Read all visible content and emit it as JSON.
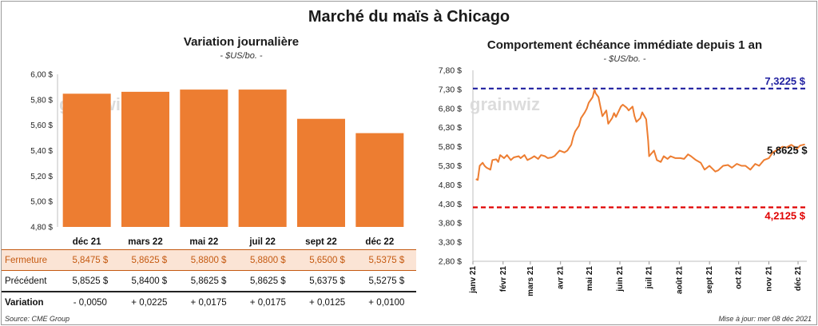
{
  "title": "Marché du maïs à Chicago",
  "left_chart": {
    "title": "Variation  journalière",
    "unit": "- $US/bo. -"
  },
  "right_chart": {
    "title": "Comportement  échéance immédiate depuis 1 an",
    "unit": "- $US/bo. -"
  },
  "watermark": "grainwiz",
  "table": {
    "rows": [
      {
        "label": "Fermeture",
        "values": [
          "5,8475  $",
          "5,8625  $",
          "5,8800  $",
          "5,8800  $",
          "5,6500  $",
          "5,5375  $"
        ]
      },
      {
        "label": "Précédent",
        "values": [
          "5,8525  $",
          "5,8400  $",
          "5,8625  $",
          "5,8625  $",
          "5,6375  $",
          "5,5275  $"
        ]
      },
      {
        "label": "Variation",
        "values": [
          "- 0,0050",
          "+ 0,0225",
          "+ 0,0175",
          "+ 0,0175",
          "+ 0,0125",
          "+ 0,0100"
        ]
      }
    ]
  },
  "footer": {
    "source": "Source: CME Group",
    "updated": "Mise à jour: mer 08 déc 2021"
  },
  "colors": {
    "bar": "#ed7d31",
    "line": "#ed7d31",
    "high": "#1f1fa0",
    "low": "#e00000"
  },
  "chart_data": [
    {
      "type": "bar",
      "categories": [
        "déc 21",
        "mars 22",
        "mai 22",
        "juil 22",
        "sept 22",
        "déc 22"
      ],
      "values": [
        5.8475,
        5.8625,
        5.88,
        5.88,
        5.65,
        5.5375
      ],
      "yticks": [
        "6,00 $",
        "5,80 $",
        "5,60 $",
        "5,40 $",
        "5,20 $",
        "5,00 $",
        "4,80 $"
      ],
      "ylim": [
        4.8,
        6.0
      ]
    },
    {
      "type": "line",
      "ylim": [
        2.8,
        7.8
      ],
      "yticks": [
        "7,80 $",
        "7,30 $",
        "6,80 $",
        "6,30 $",
        "5,80 $",
        "5,30 $",
        "4,80 $",
        "4,30 $",
        "3,80 $",
        "3,30 $",
        "2,80 $"
      ],
      "xticks": [
        "janv 21",
        "févr 21",
        "mars 21",
        "avr 21",
        "mai 21",
        "juin 21",
        "juil 21",
        "août 21",
        "sept 21",
        "oct 21",
        "nov 21",
        "déc 21"
      ],
      "x": [
        "2021-01-04",
        "2021-01-06",
        "2021-01-08",
        "2021-01-11",
        "2021-01-13",
        "2021-01-15",
        "2021-01-19",
        "2021-01-21",
        "2021-01-25",
        "2021-01-27",
        "2021-01-29",
        "2021-02-02",
        "2021-02-05",
        "2021-02-09",
        "2021-02-12",
        "2021-02-17",
        "2021-02-19",
        "2021-02-23",
        "2021-02-26",
        "2021-03-02",
        "2021-03-05",
        "2021-03-09",
        "2021-03-12",
        "2021-03-16",
        "2021-03-19",
        "2021-03-23",
        "2021-03-26",
        "2021-03-31",
        "2021-04-05",
        "2021-04-08",
        "2021-04-12",
        "2021-04-14",
        "2021-04-16",
        "2021-04-20",
        "2021-04-22",
        "2021-04-26",
        "2021-04-28",
        "2021-04-30",
        "2021-05-04",
        "2021-05-06",
        "2021-05-07",
        "2021-05-10",
        "2021-05-12",
        "2021-05-14",
        "2021-05-18",
        "2021-05-20",
        "2021-05-24",
        "2021-05-26",
        "2021-05-28",
        "2021-06-02",
        "2021-06-04",
        "2021-06-08",
        "2021-06-10",
        "2021-06-14",
        "2021-06-16",
        "2021-06-18",
        "2021-06-22",
        "2021-06-24",
        "2021-06-28",
        "2021-06-30",
        "2021-07-01",
        "2021-07-06",
        "2021-07-09",
        "2021-07-13",
        "2021-07-16",
        "2021-07-20",
        "2021-07-23",
        "2021-07-28",
        "2021-08-02",
        "2021-08-06",
        "2021-08-10",
        "2021-08-13",
        "2021-08-18",
        "2021-08-23",
        "2021-08-27",
        "2021-09-01",
        "2021-09-07",
        "2021-09-10",
        "2021-09-15",
        "2021-09-20",
        "2021-09-24",
        "2021-09-29",
        "2021-10-04",
        "2021-10-08",
        "2021-10-13",
        "2021-10-18",
        "2021-10-22",
        "2021-10-27",
        "2021-11-01",
        "2021-11-05",
        "2021-11-10",
        "2021-11-15",
        "2021-11-19",
        "2021-11-24",
        "2021-11-30",
        "2021-12-03",
        "2021-12-08"
      ],
      "y": [
        4.95,
        4.93,
        5.3,
        5.38,
        5.3,
        5.25,
        5.2,
        5.45,
        5.47,
        5.4,
        5.58,
        5.5,
        5.58,
        5.45,
        5.52,
        5.55,
        5.5,
        5.58,
        5.45,
        5.5,
        5.55,
        5.48,
        5.58,
        5.55,
        5.5,
        5.52,
        5.56,
        5.7,
        5.65,
        5.7,
        5.85,
        6.05,
        6.2,
        6.35,
        6.55,
        6.7,
        6.8,
        6.95,
        7.1,
        7.3,
        7.2,
        7.1,
        6.85,
        6.6,
        6.75,
        6.4,
        6.55,
        6.68,
        6.58,
        6.85,
        6.9,
        6.82,
        6.75,
        6.85,
        6.6,
        6.45,
        6.55,
        6.7,
        6.52,
        5.95,
        5.55,
        5.7,
        5.45,
        5.4,
        5.55,
        5.48,
        5.55,
        5.5,
        5.5,
        5.48,
        5.6,
        5.55,
        5.45,
        5.38,
        5.2,
        5.3,
        5.15,
        5.18,
        5.3,
        5.32,
        5.25,
        5.35,
        5.3,
        5.3,
        5.2,
        5.35,
        5.3,
        5.45,
        5.5,
        5.65,
        5.72,
        5.8,
        5.78,
        5.85,
        5.75,
        5.83,
        5.86
      ],
      "reference_lines": [
        {
          "label": "7,3225 $",
          "value": 7.3225,
          "color": "#1f1fa0"
        },
        {
          "label": "4,2125 $",
          "value": 4.2125,
          "color": "#e00000"
        }
      ],
      "last_label": "5,8625 $",
      "last_value": 5.8625
    }
  ]
}
